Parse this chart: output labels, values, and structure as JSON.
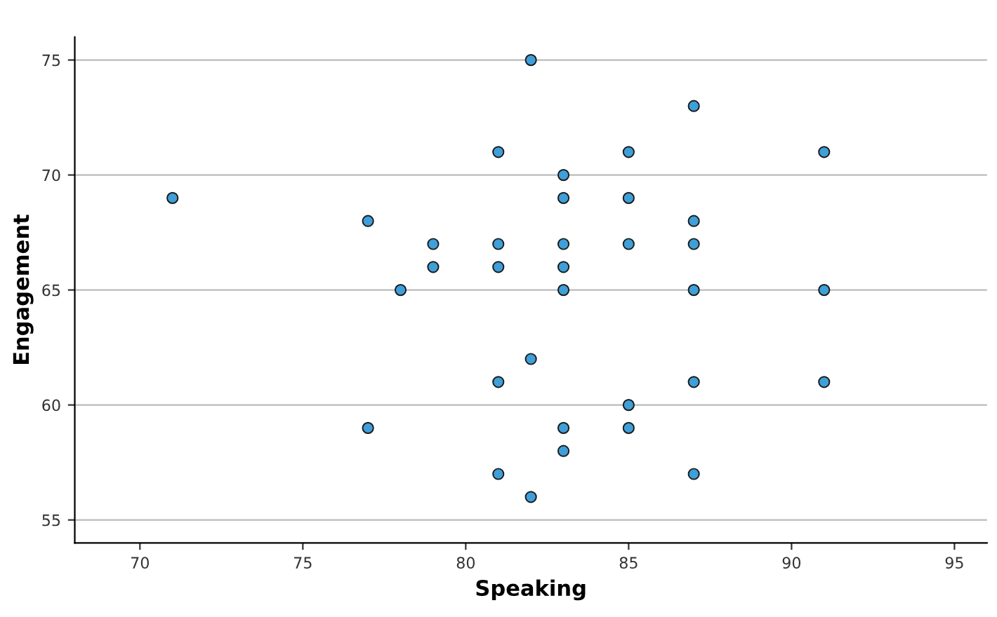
{
  "chart_data": {
    "type": "scatter",
    "xlabel": "Speaking",
    "ylabel": "Engagement",
    "x": [
      71,
      77,
      77,
      78,
      79,
      79,
      81,
      81,
      81,
      81,
      81,
      82,
      82,
      82,
      83,
      83,
      83,
      83,
      83,
      83,
      83,
      85,
      85,
      85,
      85,
      85,
      87,
      87,
      87,
      87,
      87,
      87,
      91,
      91,
      91
    ],
    "series": [
      {
        "color": "#3f9fd8",
        "values": [
          69,
          68,
          59,
          65,
          67,
          66,
          71,
          67,
          66,
          61,
          57,
          75,
          62,
          56,
          70,
          69,
          67,
          66,
          65,
          59,
          58,
          71,
          69,
          67,
          60,
          59,
          73,
          68,
          67,
          65,
          61,
          57,
          71,
          65,
          61
        ]
      }
    ],
    "xlim": [
      68,
      96
    ],
    "xticks": [
      70,
      75,
      80,
      85,
      90,
      95
    ],
    "ylim": [
      54,
      76
    ],
    "yticks": [
      55,
      60,
      65,
      70,
      75
    ],
    "grid": "y",
    "marker": "circle"
  }
}
